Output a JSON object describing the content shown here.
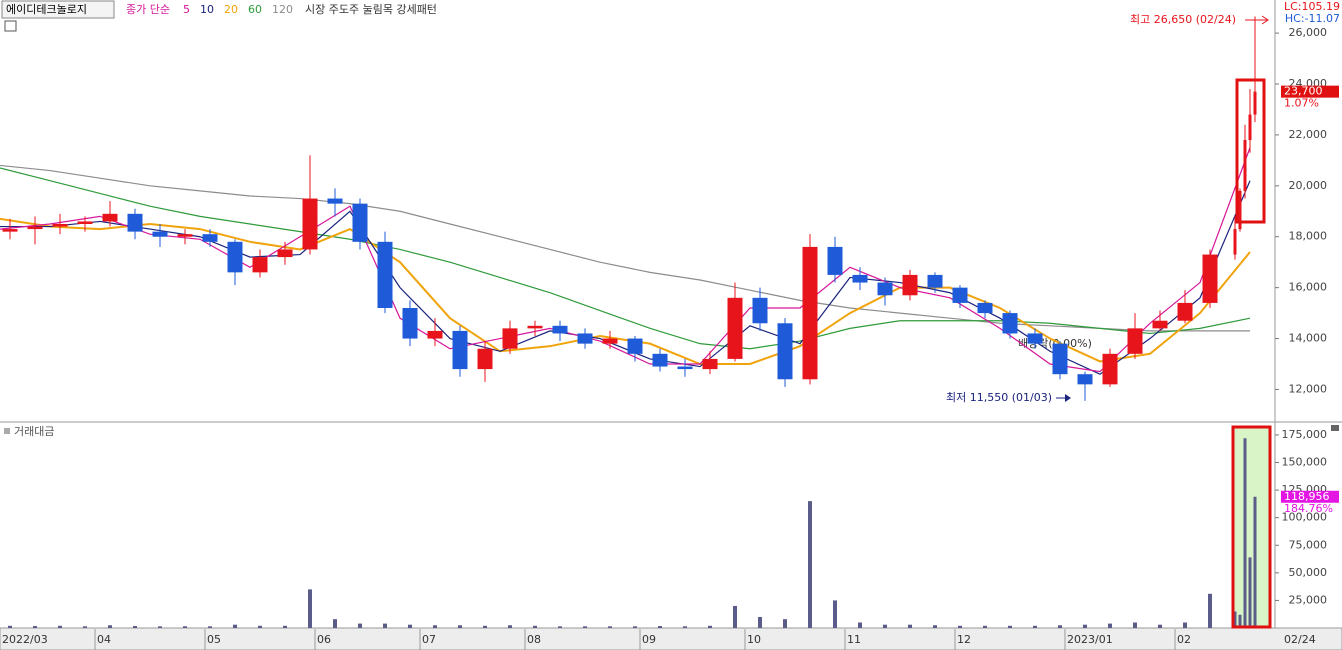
{
  "header": {
    "stock_name": "에이디테크놀로지",
    "ma_label": "종가 단순",
    "pattern": "시장 주도주 눌림목 강세패턴",
    "lc": "LC:105.19",
    "hc": "HC:-11.07",
    "volume_label": "거래대금"
  },
  "annotations": {
    "high": "최고 26,650 (02/24)",
    "low": "최저 11,550 (01/03)",
    "dividend": "배당락(0.00%)"
  },
  "chart_data": [
    {
      "type": "candlestick",
      "x": [
        2,
        7,
        12,
        17,
        22,
        27,
        32,
        37,
        42,
        47,
        52,
        57,
        62,
        67,
        72,
        77,
        82,
        87,
        92,
        97,
        102,
        107,
        112,
        117,
        122,
        127,
        132,
        137,
        142,
        147,
        152,
        157,
        162,
        167,
        172,
        177,
        182,
        187,
        192,
        197,
        202,
        207,
        212,
        217,
        222,
        227,
        232,
        237,
        242,
        247,
        248,
        249,
        250,
        251
      ],
      "open": [
        18200,
        18300,
        18400,
        18500,
        18600,
        18900,
        18200,
        18000,
        18100,
        17800,
        16600,
        17200,
        17500,
        19500,
        19300,
        17800,
        15200,
        14000,
        14300,
        12800,
        13600,
        14400,
        14500,
        14200,
        13800,
        14000,
        13400,
        12900,
        12800,
        13200,
        15600,
        14600,
        12400,
        17600,
        16500,
        16200,
        15700,
        16500,
        16000,
        15400,
        15000,
        14200,
        13800,
        12600,
        12200,
        13400,
        14400,
        14700,
        15400,
        17300,
        18300,
        19800,
        21800,
        22800
      ],
      "high": [
        18700,
        18800,
        18900,
        18800,
        19400,
        19100,
        18500,
        18300,
        18300,
        17900,
        17500,
        17800,
        21200,
        19900,
        19500,
        18200,
        15500,
        14800,
        14500,
        13900,
        14700,
        14700,
        14700,
        14400,
        14300,
        14100,
        13600,
        13200,
        13500,
        16200,
        16000,
        14800,
        18100,
        18000,
        16800,
        16400,
        16700,
        16600,
        16100,
        15500,
        15100,
        14400,
        13900,
        12700,
        13600,
        15000,
        15100,
        15900,
        17500,
        18800,
        19900,
        22400,
        23800,
        26650
      ],
      "low": [
        17900,
        17700,
        18100,
        18200,
        18400,
        17900,
        17600,
        17700,
        17600,
        16100,
        16400,
        16900,
        17300,
        18800,
        17500,
        15000,
        13700,
        13700,
        12500,
        12300,
        13400,
        14100,
        13900,
        13600,
        13600,
        13100,
        12700,
        12500,
        12600,
        13100,
        14300,
        12100,
        12200,
        16200,
        15900,
        15300,
        15500,
        15800,
        15200,
        14800,
        14000,
        13600,
        12400,
        11550,
        12100,
        13200,
        14300,
        14600,
        15200,
        17100,
        18200,
        19500,
        21300,
        22500
      ],
      "close": [
        18300,
        18400,
        18500,
        18600,
        18900,
        18200,
        18000,
        18100,
        17800,
        16600,
        17200,
        17500,
        19500,
        19300,
        17800,
        15200,
        14000,
        14300,
        12800,
        13600,
        14400,
        14500,
        14200,
        13800,
        14000,
        13400,
        12900,
        12800,
        13200,
        15600,
        14600,
        12400,
        17600,
        16500,
        16200,
        15700,
        16500,
        16000,
        15400,
        15000,
        14200,
        13800,
        12600,
        12200,
        13400,
        14400,
        14700,
        15400,
        17300,
        18300,
        19800,
        21800,
        22800,
        23700
      ],
      "up_color": "#e8141c",
      "down_color": "#1f5bd8",
      "current_price": {
        "value": 23700,
        "label": "23,700",
        "change": "1.07%"
      },
      "series": [
        {
          "name": "5",
          "color": "#d6169a",
          "x": [
            0,
            10,
            20,
            30,
            40,
            50,
            60,
            70,
            80,
            90,
            100,
            110,
            120,
            130,
            140,
            150,
            160,
            170,
            180,
            190,
            200,
            210,
            220,
            230,
            240,
            250
          ],
          "values": [
            18300,
            18500,
            18800,
            18100,
            17900,
            16800,
            18000,
            19200,
            14800,
            13600,
            14000,
            14400,
            13900,
            13000,
            13000,
            15200,
            15200,
            16800,
            16000,
            15600,
            14400,
            13000,
            12700,
            14600,
            16200,
            21500
          ]
        },
        {
          "name": "10",
          "color": "#1a237e",
          "x": [
            0,
            10,
            20,
            30,
            40,
            50,
            60,
            70,
            80,
            90,
            100,
            110,
            120,
            130,
            140,
            150,
            160,
            170,
            180,
            190,
            200,
            210,
            220,
            230,
            240,
            250
          ],
          "values": [
            18400,
            18400,
            18600,
            18300,
            18000,
            17200,
            17300,
            19000,
            16000,
            14000,
            13500,
            14300,
            14000,
            13200,
            12900,
            14500,
            13800,
            16400,
            16200,
            15800,
            14800,
            13500,
            12600,
            14000,
            15600,
            20200
          ]
        },
        {
          "name": "20",
          "color": "#f0a30a",
          "x": [
            0,
            10,
            20,
            30,
            40,
            50,
            60,
            70,
            80,
            90,
            100,
            110,
            120,
            130,
            140,
            150,
            160,
            170,
            180,
            190,
            200,
            210,
            220,
            230,
            240,
            250
          ],
          "values": [
            18700,
            18400,
            18300,
            18500,
            18300,
            17800,
            17500,
            18300,
            17000,
            14800,
            13500,
            13700,
            14100,
            13800,
            13000,
            13000,
            13700,
            15000,
            16000,
            16000,
            15200,
            14000,
            13100,
            13400,
            15000,
            17400
          ]
        },
        {
          "name": "60",
          "color": "#2e9b3a",
          "x": [
            0,
            10,
            20,
            30,
            40,
            50,
            60,
            70,
            80,
            90,
            100,
            110,
            120,
            130,
            140,
            150,
            160,
            170,
            180,
            190,
            200,
            210,
            220,
            230,
            240,
            250
          ],
          "values": [
            20700,
            20200,
            19700,
            19200,
            18800,
            18500,
            18200,
            17900,
            17500,
            17000,
            16400,
            15800,
            15100,
            14400,
            13800,
            13600,
            13900,
            14400,
            14700,
            14700,
            14700,
            14600,
            14400,
            14200,
            14400,
            14800
          ]
        },
        {
          "name": "120",
          "color": "#8c8c8c",
          "x": [
            0,
            10,
            20,
            30,
            40,
            50,
            60,
            70,
            80,
            90,
            100,
            110,
            120,
            130,
            140,
            150,
            160,
            170,
            180,
            190,
            200,
            210,
            220,
            230,
            240,
            250
          ],
          "values": [
            20800,
            20600,
            20300,
            20000,
            19800,
            19600,
            19500,
            19300,
            19000,
            18500,
            18000,
            17500,
            17000,
            16600,
            16300,
            15900,
            15500,
            15200,
            15000,
            14800,
            14600,
            14500,
            14400,
            14300,
            14300,
            14300
          ]
        }
      ],
      "xlim": [
        0,
        255
      ],
      "ylim": [
        10800,
        27300
      ],
      "yticks": [
        {
          "value": 12000,
          "label": "12,000"
        },
        {
          "value": 14000,
          "label": "14,000"
        },
        {
          "value": 16000,
          "label": "16,000"
        },
        {
          "value": 18000,
          "label": "18,000"
        },
        {
          "value": 20000,
          "label": "20,000"
        },
        {
          "value": 22000,
          "label": "22,000"
        },
        {
          "value": 24000,
          "label": "24,000"
        },
        {
          "value": 26000,
          "label": "26,000"
        }
      ]
    },
    {
      "type": "bar",
      "color": "#5c5c8a",
      "x": [
        2,
        7,
        12,
        17,
        22,
        27,
        32,
        37,
        42,
        47,
        52,
        57,
        62,
        67,
        72,
        77,
        82,
        87,
        92,
        97,
        102,
        107,
        112,
        117,
        122,
        127,
        132,
        137,
        142,
        147,
        152,
        157,
        162,
        167,
        172,
        177,
        182,
        187,
        192,
        197,
        202,
        207,
        212,
        217,
        222,
        227,
        232,
        237,
        242,
        247,
        248,
        249,
        250,
        251
      ],
      "values": [
        2000,
        1800,
        2000,
        1500,
        2500,
        1800,
        1500,
        1600,
        1500,
        3000,
        2000,
        2000,
        35000,
        8000,
        4000,
        4000,
        3000,
        2500,
        2500,
        2000,
        2500,
        2000,
        1500,
        1500,
        1500,
        1500,
        1800,
        1500,
        2000,
        20000,
        10000,
        8000,
        115000,
        25000,
        5000,
        3000,
        3000,
        2500,
        2000,
        2000,
        2000,
        2000,
        2500,
        3000,
        4000,
        5000,
        3000,
        5000,
        31000,
        15000,
        12000,
        172000,
        64000,
        118956
      ],
      "current_volume": {
        "value": 118956,
        "label": "118,956",
        "change": "184.76%"
      },
      "xlim": [
        0,
        255
      ],
      "ylim": [
        0,
        184000
      ],
      "yticks": [
        {
          "value": 25000,
          "label": "25,000"
        },
        {
          "value": 50000,
          "label": "50,000"
        },
        {
          "value": 75000,
          "label": "75,000"
        },
        {
          "value": 100000,
          "label": "100,000"
        },
        {
          "value": 125000,
          "label": "125,000"
        },
        {
          "value": 150000,
          "label": "150,000"
        },
        {
          "value": 175000,
          "label": "175,000"
        }
      ],
      "xticks": [
        {
          "value": 0,
          "label": "2022/03"
        },
        {
          "value": 19,
          "label": "04"
        },
        {
          "value": 41,
          "label": "05"
        },
        {
          "value": 63,
          "label": "06"
        },
        {
          "value": 84,
          "label": "07"
        },
        {
          "value": 105,
          "label": "08"
        },
        {
          "value": 128,
          "label": "09"
        },
        {
          "value": 149,
          "label": "10"
        },
        {
          "value": 169,
          "label": "11"
        },
        {
          "value": 191,
          "label": "12"
        },
        {
          "value": 213,
          "label": "2023/01"
        },
        {
          "value": 235,
          "label": "02"
        }
      ],
      "last_date": "02/24"
    }
  ]
}
